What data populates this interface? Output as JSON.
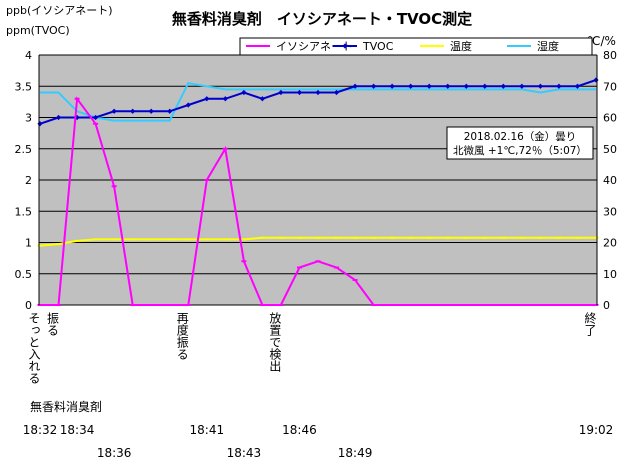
{
  "chart_data": {
    "type": "line",
    "title": "無香料消臭剤　イソシアネート・TVOC測定",
    "y_left_label_1": "ppb(イソシアネート)",
    "y_left_label_2": "ppm(TVOC)",
    "y_right_label": "℃/%",
    "ylim_left": [
      0,
      4
    ],
    "ylim_right": [
      0,
      80
    ],
    "y_left_ticks": [
      "0",
      "0.5",
      "1",
      "1.5",
      "2",
      "2.5",
      "3",
      "3.5",
      "4"
    ],
    "y_right_ticks": [
      "0",
      "10",
      "20",
      "30",
      "40",
      "50",
      "60",
      "70",
      "80"
    ],
    "grid": true,
    "legend_position": "top",
    "plot_background": "#c0c0c0",
    "n_points": 31,
    "series": [
      {
        "name": "イソシアネート",
        "color": "#ff00ff",
        "marker": "dash",
        "axis": "left",
        "values": [
          0,
          0,
          3.3,
          2.9,
          1.9,
          0,
          0,
          0,
          0,
          2.0,
          2.5,
          0.7,
          0,
          0,
          0.6,
          0.7,
          0.6,
          0.4,
          0,
          0,
          0,
          0,
          0,
          0,
          0,
          0,
          0,
          0,
          0,
          0,
          0
        ]
      },
      {
        "name": "TVOC",
        "color": "#0000cc",
        "marker": "diamond",
        "axis": "left",
        "values": [
          2.9,
          3.0,
          3.0,
          3.0,
          3.1,
          3.1,
          3.1,
          3.1,
          3.2,
          3.3,
          3.3,
          3.4,
          3.3,
          3.4,
          3.4,
          3.4,
          3.4,
          3.5,
          3.5,
          3.5,
          3.5,
          3.5,
          3.5,
          3.5,
          3.5,
          3.5,
          3.5,
          3.5,
          3.5,
          3.5,
          3.6
        ]
      },
      {
        "name": "温度",
        "color": "#ffff00",
        "marker": "dash",
        "axis": "right",
        "values": [
          19,
          19.5,
          20.5,
          21,
          21,
          21,
          21,
          21,
          21,
          21,
          21,
          21,
          21.5,
          21.5,
          21.5,
          21.5,
          21.5,
          21.5,
          21.5,
          21.5,
          21.5,
          21.5,
          21.5,
          21.5,
          21.5,
          21.5,
          21.5,
          21.5,
          21.5,
          21.5,
          21.5
        ]
      },
      {
        "name": "湿度",
        "color": "#33ccff",
        "marker": "none",
        "axis": "right",
        "values": [
          68,
          68,
          62,
          60,
          59,
          59,
          59,
          59,
          71,
          70,
          69,
          69,
          69,
          69,
          69,
          69,
          69,
          69,
          69,
          69,
          69,
          69,
          69,
          69,
          69,
          69,
          69,
          68,
          69,
          69,
          69
        ]
      }
    ],
    "annotation": {
      "line1": "2018.02.16（金）曇り",
      "line2": "北微風 +1℃,72％（5:07）"
    },
    "event_labels": [
      {
        "index": 0,
        "text": "そっと入れる"
      },
      {
        "index": 1,
        "text": "振る"
      },
      {
        "index": 8,
        "text": "再度振る"
      },
      {
        "index": 13,
        "text": "放置で検出"
      },
      {
        "index": 30,
        "text": "終了"
      }
    ],
    "subject_label": "無香料消臭剤",
    "time_labels_row1": [
      {
        "index": 0,
        "text": "18:32"
      },
      {
        "index": 2,
        "text": "18:34"
      },
      {
        "index": 9,
        "text": "18:41"
      },
      {
        "index": 14,
        "text": "18:46"
      },
      {
        "index": 30,
        "text": "19:02"
      }
    ],
    "time_labels_row2": [
      {
        "index": 4,
        "text": "18:36"
      },
      {
        "index": 11,
        "text": "18:43"
      },
      {
        "index": 17,
        "text": "18:49"
      }
    ]
  }
}
